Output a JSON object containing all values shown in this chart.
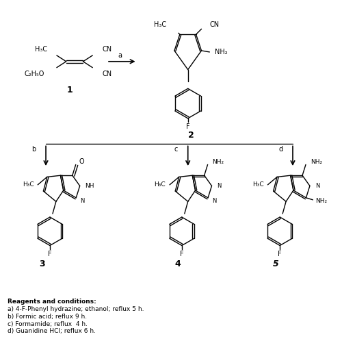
{
  "background_color": "#ffffff",
  "reagents_text": [
    "Reagents and conditions:",
    "a) 4-F-Phenyl hydrazine; ethanol; reflux 5 h.",
    "b) Formic acid; reflux 9 h.",
    "c) Formamide; reflux  4 h.",
    "d) Guanidine HCl; reflux 6 h."
  ]
}
